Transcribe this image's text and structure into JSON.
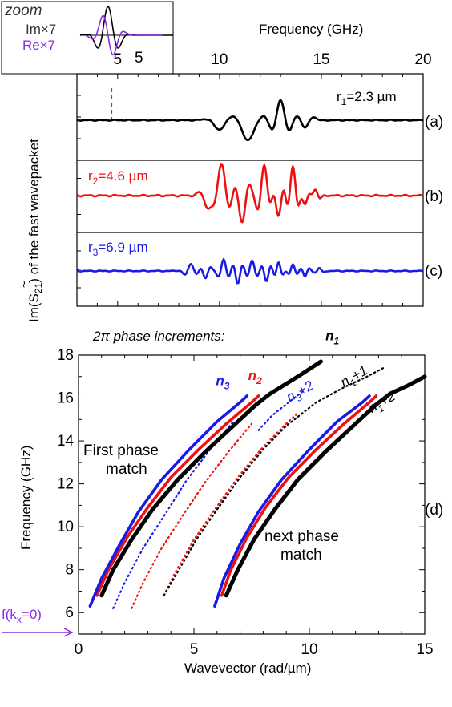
{
  "colors": {
    "black": "#000000",
    "red": "#ee1111",
    "blue": "#1a1ae6",
    "purple": "#8a2be2"
  },
  "inset": {
    "title": "zoom",
    "legend": [
      {
        "label": "Im×7",
        "color": "#000000"
      },
      {
        "label": "Re×7",
        "color": "#8a2be2"
      }
    ],
    "tick_label": "5"
  },
  "top": {
    "xlabel": "Frequency (GHz)",
    "ylabel": "Im(S̃21) of the fast wavepacket",
    "ylabel_parts": {
      "pre": "Im(",
      "sym": "S",
      "tilde": "~",
      "sub": "21",
      "post": ") of the fast wavepacket"
    }
  },
  "bottom": {
    "heading": "2π phase increments:",
    "ylabel": "Frequency (GHz)",
    "xlabel": "Wavevector (rad/µm)",
    "panel_label": "(d)",
    "ann_first": [
      "First phase",
      "match"
    ],
    "ann_next": [
      "next phase",
      "match"
    ],
    "corner_label": {
      "pre": "f(k",
      "sub": "x",
      "post": "=0)"
    }
  },
  "chart_data": [
    {
      "type": "line",
      "panel": "(a)",
      "label": "r1=2.3 µm",
      "label_parts": {
        "pre": "r",
        "sub": "1",
        "post": "=2.3 µm"
      },
      "color": "#000000",
      "xlim": [
        3,
        20
      ],
      "xticks": [
        5,
        10,
        15,
        20
      ],
      "marker_x": 4.7,
      "waves": [
        [
          10.0,
          1.0,
          -0.45,
          0.55
        ],
        [
          11.4,
          1.1,
          -0.95,
          0.65
        ],
        [
          13.0,
          0.5,
          0.95,
          0.55
        ],
        [
          14.2,
          0.5,
          -0.35,
          0.5
        ]
      ]
    },
    {
      "type": "line",
      "panel": "(b)",
      "label": "r2=4.6 µm",
      "label_parts": {
        "pre": "r",
        "sub": "2",
        "post": "=4.6 µm"
      },
      "color": "#ee1111",
      "xlim": [
        3,
        20
      ],
      "waves": [
        [
          10.1,
          0.5,
          1.0,
          0.45
        ],
        [
          9.4,
          0.5,
          -0.35,
          0.4
        ],
        [
          11.1,
          0.45,
          -0.85,
          0.4
        ],
        [
          12.2,
          0.4,
          0.95,
          0.4
        ],
        [
          12.9,
          0.35,
          -0.7,
          0.35
        ],
        [
          13.6,
          0.35,
          0.9,
          0.35
        ],
        [
          14.2,
          0.3,
          -0.3,
          0.3
        ],
        [
          14.7,
          0.3,
          0.2,
          0.3
        ]
      ]
    },
    {
      "type": "line",
      "panel": "(c)",
      "label": "r3=6.9 µm",
      "label_parts": {
        "pre": "r",
        "sub": "3",
        "post": "=6.9 µm"
      },
      "color": "#1a1ae6",
      "xlim": [
        3,
        20
      ],
      "waves": [
        [
          8.6,
          0.35,
          0.35,
          0.4
        ],
        [
          9.3,
          0.3,
          -0.35,
          0.3
        ],
        [
          10.2,
          0.3,
          0.55,
          0.32
        ],
        [
          10.9,
          0.3,
          -0.6,
          0.3
        ],
        [
          11.6,
          0.3,
          0.5,
          0.3
        ],
        [
          12.3,
          0.28,
          -0.5,
          0.28
        ],
        [
          12.9,
          0.25,
          0.4,
          0.25
        ],
        [
          13.6,
          0.25,
          0.3,
          0.25
        ],
        [
          14.2,
          0.25,
          -0.25,
          0.25
        ],
        [
          14.9,
          0.25,
          0.15,
          0.25
        ]
      ]
    },
    {
      "type": "line",
      "panel": "(d)",
      "xlabel": "Wavevector (rad/µm)",
      "ylabel": "Frequency (GHz)",
      "xlim": [
        0,
        15
      ],
      "ylim": [
        5,
        18
      ],
      "xticks": [
        0,
        5,
        10,
        15
      ],
      "yticks": [
        6,
        8,
        10,
        12,
        14,
        16,
        18
      ],
      "series": [
        {
          "name": "n3",
          "color": "#1a1ae6",
          "style": "solid",
          "x": [
            0.5,
            1.0,
            1.8,
            2.6,
            3.6,
            4.8,
            6.0,
            7.0,
            7.3
          ],
          "y": [
            6.3,
            7.6,
            9.2,
            10.7,
            12.2,
            13.6,
            14.9,
            15.8,
            16.1
          ]
        },
        {
          "name": "n2",
          "color": "#ee1111",
          "style": "solid",
          "x": [
            0.8,
            1.3,
            2.1,
            3.0,
            4.0,
            5.2,
            6.4,
            7.5,
            7.8
          ],
          "y": [
            6.8,
            8.0,
            9.5,
            10.9,
            12.3,
            13.6,
            14.8,
            15.8,
            16.1
          ]
        },
        {
          "name": "n1",
          "color": "#000000",
          "style": "solid",
          "x": [
            1.0,
            1.5,
            2.3,
            3.2,
            4.3,
            5.5,
            6.7,
            7.7,
            8.3,
            9.5,
            10.5
          ],
          "y": [
            6.8,
            8.0,
            9.4,
            10.8,
            12.2,
            13.5,
            14.7,
            15.7,
            16.2,
            17.0,
            17.7
          ]
        },
        {
          "name": "n3+1",
          "color": "#1a1ae6",
          "style": "dotted",
          "x": [
            1.5,
            2.0,
            2.8,
            3.7,
            4.7,
            5.7,
            6.7
          ],
          "y": [
            6.2,
            7.4,
            9.0,
            10.5,
            12.2,
            13.6,
            14.9
          ]
        },
        {
          "name": "n2+1",
          "color": "#ee1111",
          "style": "dotted",
          "x": [
            2.3,
            2.8,
            3.6,
            4.5,
            5.5,
            6.5,
            7.5
          ],
          "y": [
            6.2,
            7.4,
            9.0,
            10.5,
            12.1,
            13.5,
            14.8
          ]
        },
        {
          "name": "n3+2",
          "color": "#1a1ae6",
          "style": "dotted",
          "x": [
            7.8,
            8.4,
            9.1,
            9.7
          ],
          "y": [
            14.5,
            15.2,
            15.8,
            16.3
          ]
        },
        {
          "name": "n2+2",
          "color": "#ee1111",
          "style": "dotted",
          "x": [
            3.7,
            4.2,
            5.0,
            5.9,
            6.9,
            7.9,
            8.9,
            9.5
          ],
          "y": [
            6.8,
            7.9,
            9.4,
            10.8,
            12.3,
            13.6,
            14.7,
            15.3
          ]
        },
        {
          "name": "n1+1",
          "color": "#000000",
          "style": "dotted",
          "x": [
            3.7,
            4.3,
            5.1,
            6.0,
            7.0,
            8.0,
            9.0,
            10.3,
            11.5,
            12.5,
            13.2
          ],
          "y": [
            6.8,
            7.9,
            9.4,
            10.8,
            12.3,
            13.6,
            14.7,
            15.8,
            16.5,
            17.0,
            17.4
          ]
        },
        {
          "name": "n3 (next)",
          "color": "#1a1ae6",
          "style": "solid",
          "x": [
            5.9,
            6.3,
            7.0,
            7.8,
            8.8,
            10.0,
            11.2,
            12.3,
            12.6
          ],
          "y": [
            6.3,
            7.6,
            9.2,
            10.7,
            12.2,
            13.6,
            14.9,
            15.8,
            16.1
          ]
        },
        {
          "name": "n2 (next)",
          "color": "#ee1111",
          "style": "solid",
          "x": [
            6.2,
            6.6,
            7.3,
            8.1,
            9.1,
            10.3,
            11.5,
            12.6,
            12.9
          ],
          "y": [
            6.8,
            8.0,
            9.5,
            10.9,
            12.3,
            13.6,
            14.8,
            15.8,
            16.1
          ]
        },
        {
          "name": "n1+2",
          "color": "#000000",
          "style": "solid",
          "x": [
            6.4,
            6.9,
            7.6,
            8.5,
            9.5,
            10.7,
            11.9,
            12.9,
            13.5,
            14.3,
            15.0
          ],
          "y": [
            6.8,
            8.0,
            9.4,
            10.8,
            12.2,
            13.5,
            14.7,
            15.7,
            16.2,
            16.6,
            17.0
          ]
        }
      ],
      "labels": [
        {
          "text": "n3",
          "sub": "3",
          "color": "#1a1ae6",
          "x": 5.95,
          "y": 16.6,
          "bold": true
        },
        {
          "text": "n2",
          "sub": "2",
          "color": "#ee1111",
          "x": 7.35,
          "y": 16.85,
          "bold": true
        },
        {
          "text": "n1",
          "sub": "1",
          "color": "#000000",
          "x": 10.7,
          "y": 18.7,
          "bold": true
        },
        {
          "text": "n3+2",
          "sub": "3",
          "color": "#1a1ae6",
          "x": 9.15,
          "y": 15.8,
          "bold": false,
          "rotate": -30
        },
        {
          "text": "n1+1",
          "sub": "1",
          "color": "#000000",
          "x": 11.5,
          "y": 16.5,
          "bold": false,
          "rotate": -30
        },
        {
          "text": "n1+2",
          "sub": "1",
          "color": "#000000",
          "x": 12.7,
          "y": 15.3,
          "bold": false,
          "rotate": -30
        }
      ]
    }
  ]
}
